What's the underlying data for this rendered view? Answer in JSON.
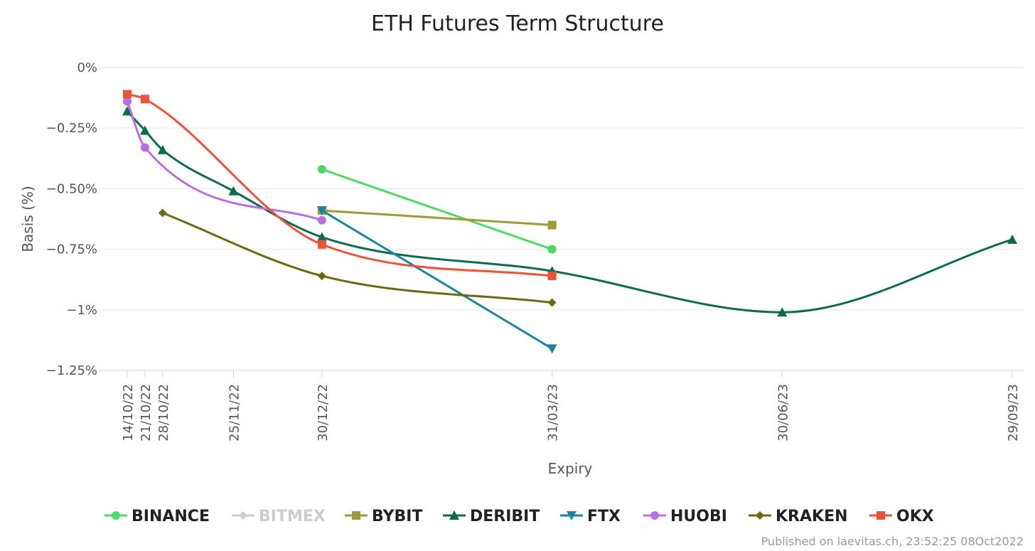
{
  "chart_data": {
    "type": "line",
    "title": "ETH Futures Term Structure",
    "xlabel": "Expiry",
    "ylabel": "Basis (%)",
    "ylim": [
      -1.25,
      0
    ],
    "y_ticks": [
      0,
      -0.25,
      -0.5,
      -0.75,
      -1,
      -1.25
    ],
    "y_tick_labels": [
      "0%",
      "−0.25%",
      "−0.50%",
      "−0.75%",
      "−1%",
      "−1.25%"
    ],
    "x_ticks": [
      "14/10/22",
      "21/10/22",
      "28/10/22",
      "25/11/22",
      "30/12/22",
      "31/03/23",
      "30/06/23",
      "29/09/23"
    ],
    "grid": true,
    "legend_position": "bottom",
    "series": [
      {
        "name": "BINANCE",
        "color": "#4cd964",
        "marker": "circle",
        "visible": true,
        "points": [
          {
            "x": "30/12/22",
            "y": -0.42
          },
          {
            "x": "31/03/23",
            "y": -0.75
          }
        ]
      },
      {
        "name": "BITMEX",
        "color": "#cccccc",
        "marker": "diamond",
        "visible": false,
        "points": []
      },
      {
        "name": "BYBIT",
        "color": "#9e9a35",
        "marker": "square",
        "visible": true,
        "points": [
          {
            "x": "30/12/22",
            "y": -0.59
          },
          {
            "x": "31/03/23",
            "y": -0.65
          }
        ]
      },
      {
        "name": "DERIBIT",
        "color": "#0b6b4f",
        "marker": "triangle",
        "visible": true,
        "points": [
          {
            "x": "14/10/22",
            "y": -0.18
          },
          {
            "x": "21/10/22",
            "y": -0.26
          },
          {
            "x": "28/10/22",
            "y": -0.34
          },
          {
            "x": "25/11/22",
            "y": -0.51
          },
          {
            "x": "30/12/22",
            "y": -0.7
          },
          {
            "x": "31/03/23",
            "y": -0.84
          },
          {
            "x": "30/06/23",
            "y": -1.01
          },
          {
            "x": "29/09/23",
            "y": -0.71
          }
        ]
      },
      {
        "name": "FTX",
        "color": "#1a86a1",
        "marker": "triangle-down",
        "visible": true,
        "points": [
          {
            "x": "30/12/22",
            "y": -0.59
          },
          {
            "x": "31/03/23",
            "y": -1.16
          }
        ]
      },
      {
        "name": "HUOBI",
        "color": "#b96fe3",
        "marker": "circle",
        "visible": true,
        "points": [
          {
            "x": "14/10/22",
            "y": -0.14
          },
          {
            "x": "21/10/22",
            "y": -0.33
          },
          {
            "x": "30/12/22",
            "y": -0.63
          }
        ]
      },
      {
        "name": "KRAKEN",
        "color": "#6b6a10",
        "marker": "diamond",
        "visible": true,
        "points": [
          {
            "x": "28/10/22",
            "y": -0.6
          },
          {
            "x": "30/12/22",
            "y": -0.86
          },
          {
            "x": "31/03/23",
            "y": -0.97
          }
        ]
      },
      {
        "name": "OKX",
        "color": "#ee5236",
        "marker": "square",
        "visible": true,
        "points": [
          {
            "x": "14/10/22",
            "y": -0.11
          },
          {
            "x": "21/10/22",
            "y": -0.13
          },
          {
            "x": "30/12/22",
            "y": -0.73
          },
          {
            "x": "31/03/23",
            "y": -0.86
          }
        ]
      }
    ]
  },
  "credit": "Published on laevitas.ch, 23:52:25 08Oct2022"
}
